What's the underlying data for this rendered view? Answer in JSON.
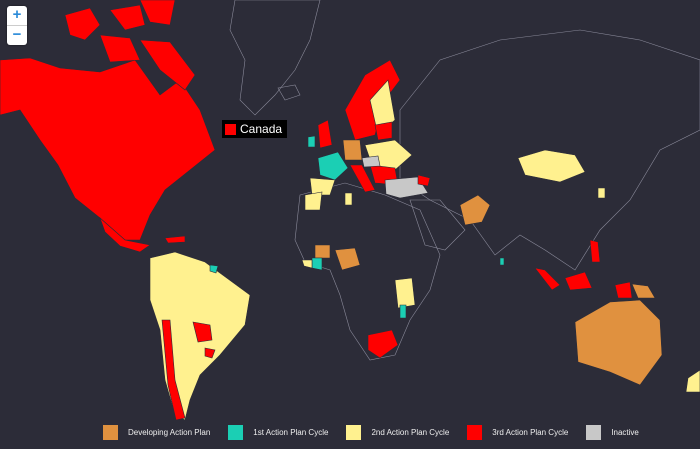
{
  "zoom_controls": {
    "zoom_in": "+",
    "zoom_out": "−"
  },
  "tooltip": {
    "country": "Canada",
    "status_color": "#ff0000"
  },
  "colors": {
    "background": "#2c2c38",
    "developing": "#e0913f",
    "first_cycle": "#1bcfb4",
    "second_cycle": "#fff18f",
    "third_cycle": "#ff0000",
    "inactive": "#c8c8c8"
  },
  "legend": [
    {
      "label": "Developing Action Plan",
      "color": "#e0913f"
    },
    {
      "label": "1st Action Plan Cycle",
      "color": "#1bcfb4"
    },
    {
      "label": "2nd Action Plan Cycle",
      "color": "#fff18f"
    },
    {
      "label": "3rd Action Plan Cycle",
      "color": "#ff0000"
    },
    {
      "label": "Inactive",
      "color": "#c8c8c8"
    }
  ]
}
